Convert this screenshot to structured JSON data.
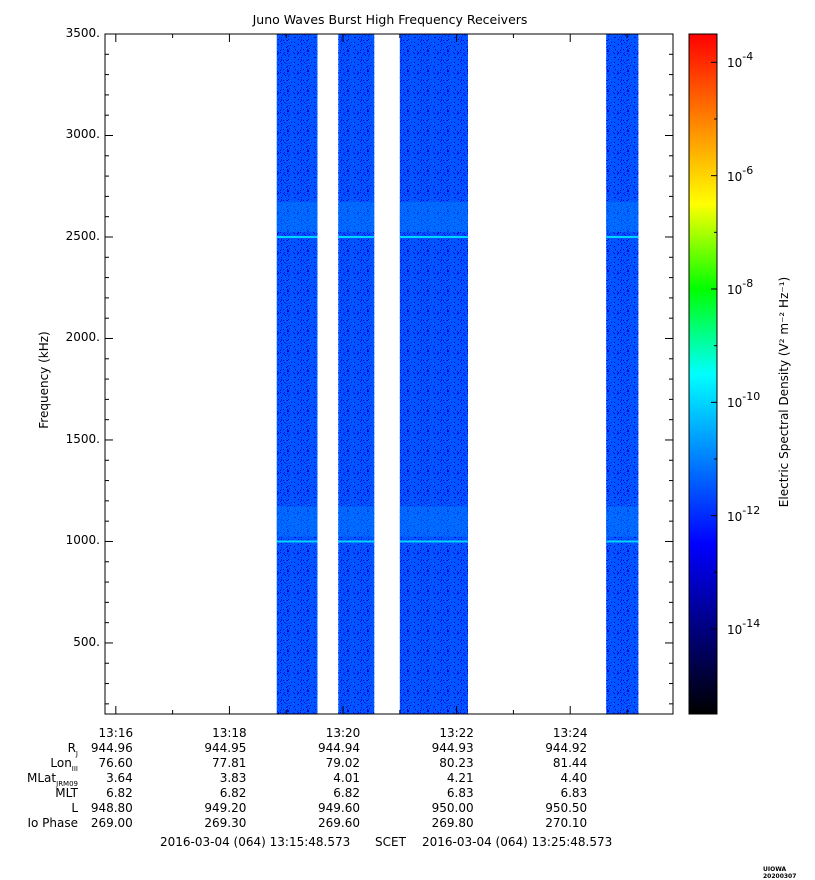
{
  "chart_data": {
    "type": "heatmap",
    "title": "Juno Waves Burst High Frequency Receivers",
    "ylabel": "Frequency (kHz)",
    "colorbar_label": "Electric Spectral Density (V² m⁻² Hz⁻¹)",
    "xlim": [
      "13:15:48.573",
      "13:25:48.573"
    ],
    "ylim": [
      150,
      3500
    ],
    "x_ticks": [
      "13:16",
      "13:18",
      "13:20",
      "13:22",
      "13:24"
    ],
    "y_ticks": [
      "500.",
      "1000.",
      "1500.",
      "2000.",
      "2500.",
      "3000.",
      "3500."
    ],
    "y_tick_values": [
      500,
      1000,
      1500,
      2000,
      2500,
      3000,
      3500
    ],
    "colorbar_scale": "log",
    "colorbar_range_log10": [
      -15.5,
      -3.5
    ],
    "colorbar_ticks": [
      "10-4",
      "10-6",
      "10-8",
      "10-10",
      "10-12",
      "10-14"
    ],
    "colorbar_tick_exps": [
      -4,
      -6,
      -8,
      -10,
      -12,
      -14
    ],
    "colorbar_colors": [
      "#000000",
      "#00007f",
      "#0000ff",
      "#0080ff",
      "#00ffff",
      "#00ff00",
      "#ffff00",
      "#ff8000",
      "#ff0000"
    ],
    "bursts": [
      {
        "start": "13:18:50",
        "end": "13:19:33",
        "log10_density": -11.5
      },
      {
        "start": "13:19:55",
        "end": "13:20:33",
        "log10_density": -11.5
      },
      {
        "start": "13:21:00",
        "end": "13:22:12",
        "log10_density": -11.5
      },
      {
        "start": "13:24:38",
        "end": "13:25:12",
        "log10_density": -11.5
      }
    ],
    "enhanced_bands_kHz": [
      1000,
      2500
    ],
    "ephemeris": {
      "labels": [
        "Rj",
        "LonIII",
        "MLatJRM09",
        "MLT",
        "L",
        "Io Phase"
      ],
      "ticks": [
        "13:16",
        "13:18",
        "13:20",
        "13:22",
        "13:24"
      ],
      "values": [
        [
          "944.96",
          "944.95",
          "944.94",
          "944.93",
          "944.92"
        ],
        [
          "76.60",
          "77.81",
          "79.02",
          "80.23",
          "81.44"
        ],
        [
          "3.64",
          "3.83",
          "4.01",
          "4.21",
          "4.40"
        ],
        [
          "6.82",
          "6.82",
          "6.82",
          "6.83",
          "6.83"
        ],
        [
          "948.80",
          "949.20",
          "949.60",
          "950.00",
          "950.50"
        ],
        [
          "269.00",
          "269.30",
          "269.60",
          "269.80",
          "270.10"
        ]
      ]
    }
  },
  "footer": {
    "start": "2016-03-04 (064) 13:15:48.573",
    "scet": "SCET",
    "end": "2016-03-04 (064) 13:25:48.573"
  },
  "stamp": "UIOWA 20200307"
}
